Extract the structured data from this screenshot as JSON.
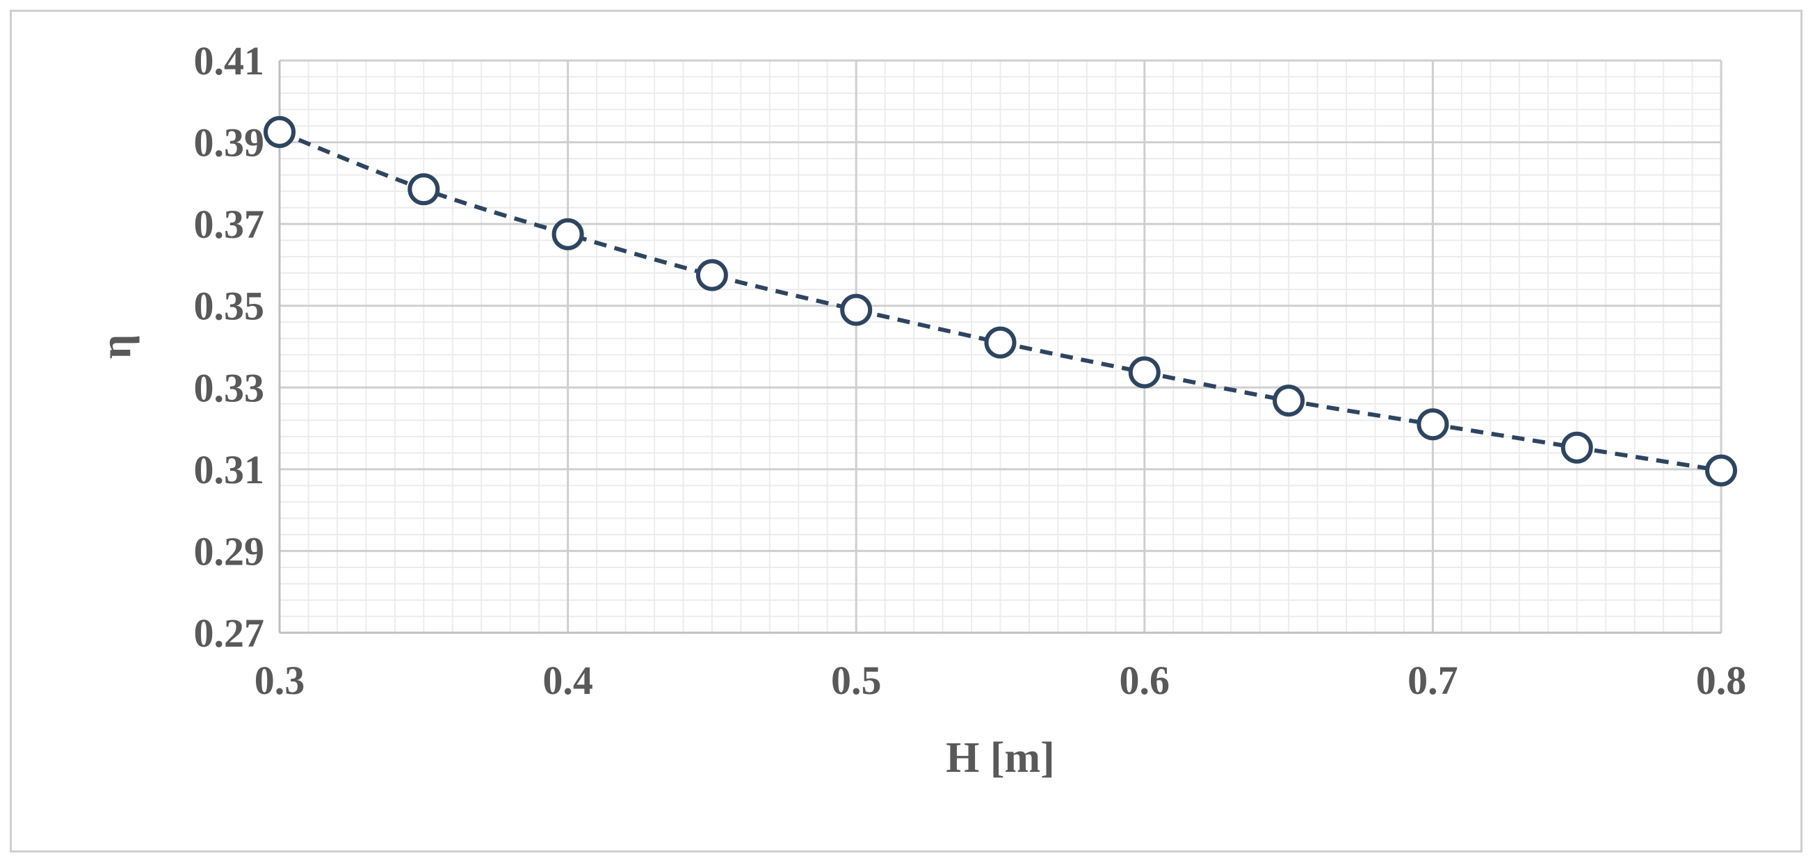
{
  "chart_data": {
    "type": "line",
    "title": "",
    "xlabel": "H [m]",
    "ylabel": "η",
    "xlim": [
      0.3,
      0.8
    ],
    "ylim": [
      0.27,
      0.41
    ],
    "x_ticks": [
      "0.3",
      "0.4",
      "0.5",
      "0.6",
      "0.7",
      "0.8"
    ],
    "y_ticks": [
      "0.27",
      "0.29",
      "0.31",
      "0.33",
      "0.35",
      "0.37",
      "0.39",
      "0.41"
    ],
    "grid": true,
    "minor_grid": true,
    "legend": "none",
    "series": [
      {
        "x": [
          0.3,
          0.35,
          0.4,
          0.45,
          0.5,
          0.55,
          0.6,
          0.65,
          0.7,
          0.75,
          0.8
        ],
        "y": [
          0.3925,
          0.3785,
          0.3675,
          0.3575,
          0.349,
          0.341,
          0.3337,
          0.3268,
          0.321,
          0.3153,
          0.3097
        ],
        "line_style": "dashed",
        "marker": "open-circle",
        "color": "#2e4560"
      }
    ]
  }
}
